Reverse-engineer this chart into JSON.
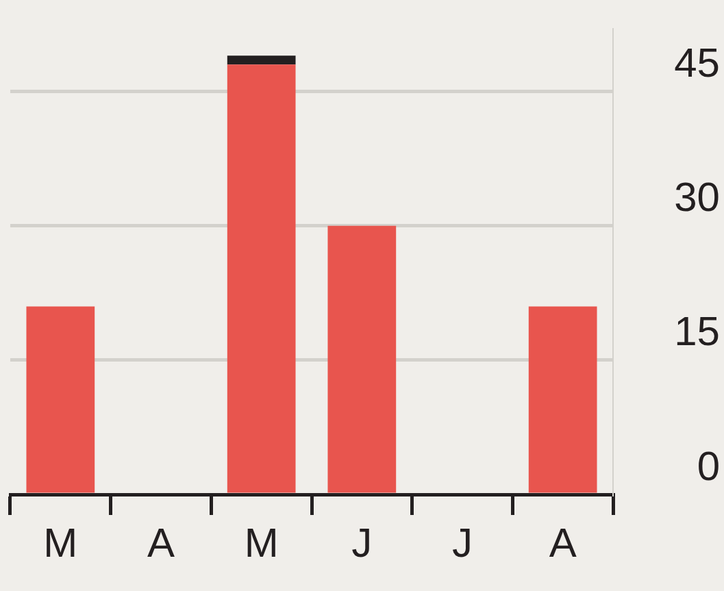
{
  "chart_data": {
    "type": "bar",
    "stacked": true,
    "categories": [
      "M",
      "A",
      "M",
      "J",
      "J",
      "A"
    ],
    "series": [
      {
        "color": "#e8554e",
        "values": [
          21,
          null,
          48,
          30,
          null,
          21
        ]
      },
      {
        "color": "#231f20",
        "values": [
          null,
          null,
          1,
          null,
          null,
          null
        ]
      }
    ],
    "ylim": [
      0,
      52
    ],
    "yticks": [
      0,
      15,
      30,
      45
    ],
    "grid": "y",
    "legend": false
  }
}
